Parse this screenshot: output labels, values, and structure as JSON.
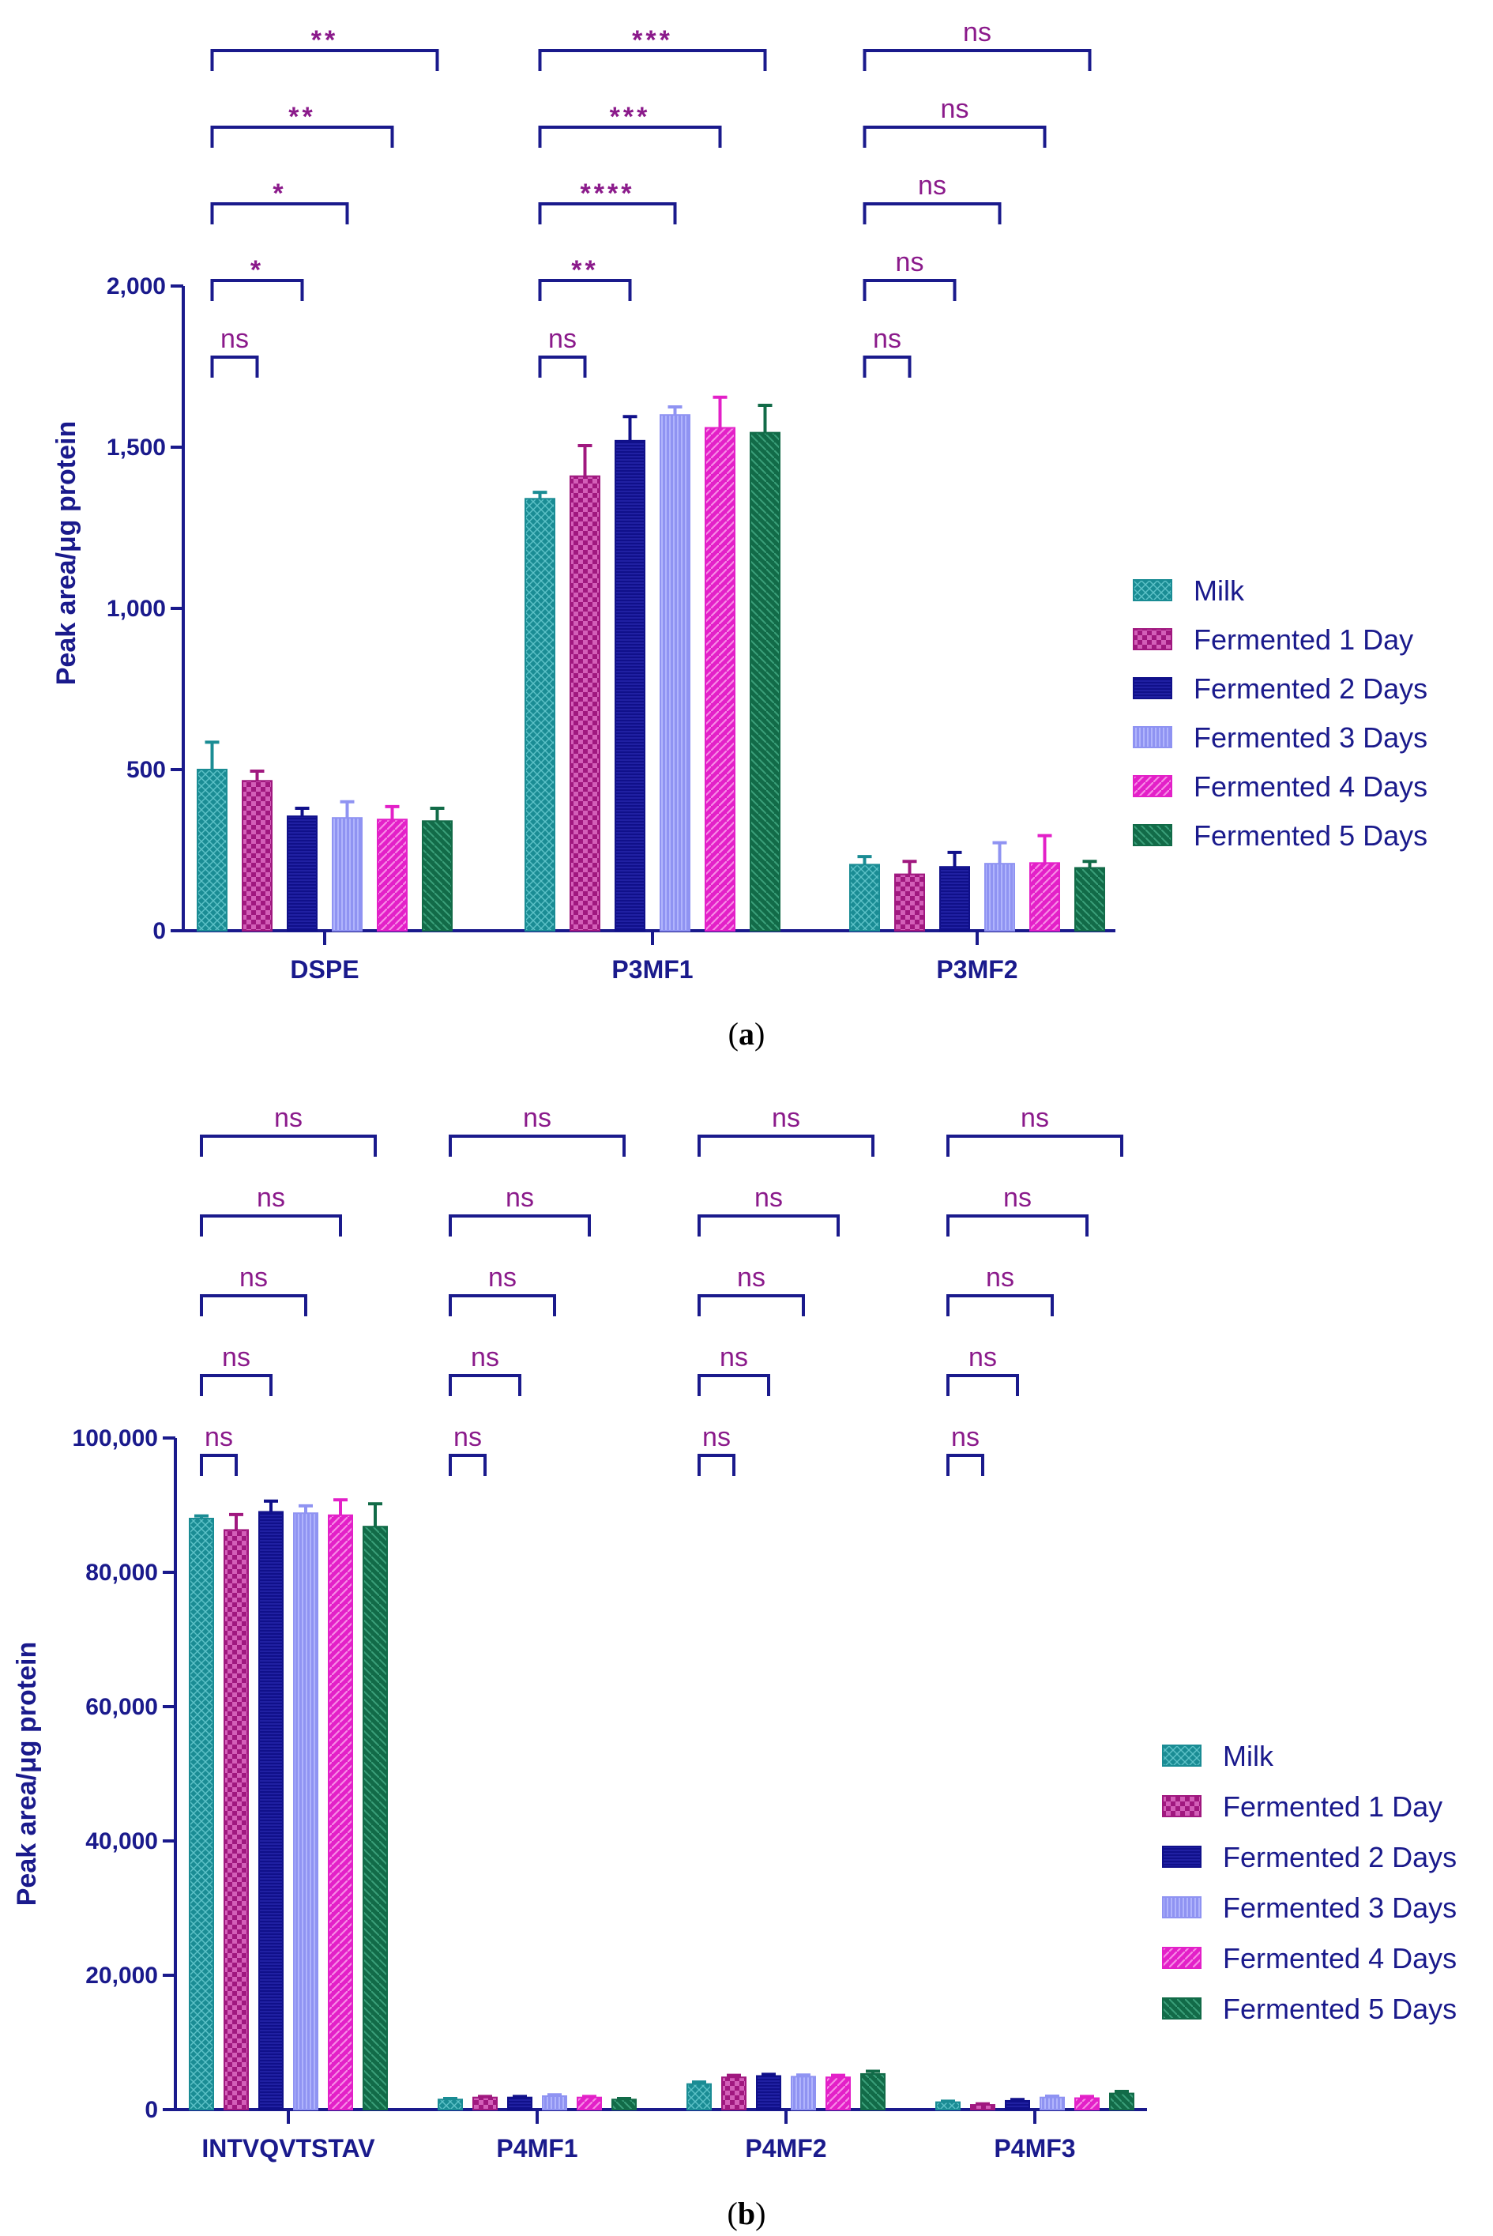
{
  "colors": {
    "axis": "#1a1a8c",
    "significance": "#8b1a8b",
    "series": [
      "#1a8c94",
      "#a0187f",
      "#10108a",
      "#8f93f2",
      "#e320c8",
      "#126b48"
    ]
  },
  "chart_data": [
    {
      "type": "bar",
      "panel_label_prefix": "(",
      "panel_label_letter": "a",
      "panel_label_suffix": ")",
      "ylabel": "Peak area/μg protein",
      "ylim": [
        0,
        2000
      ],
      "yticks": [
        {
          "value": 0,
          "label": "0"
        },
        {
          "value": 500,
          "label": "500"
        },
        {
          "value": 1000,
          "label": "1,000"
        },
        {
          "value": 1500,
          "label": "1,500"
        },
        {
          "value": 2000,
          "label": "2,000"
        }
      ],
      "categories": [
        "DSPE",
        "P3MF1",
        "P3MF2"
      ],
      "series": [
        {
          "name": "Milk",
          "values": [
            500,
            1340,
            205
          ],
          "errors": [
            85,
            20,
            25
          ]
        },
        {
          "name": "Fermented 1 Day",
          "values": [
            465,
            1410,
            175
          ],
          "errors": [
            30,
            95,
            40
          ]
        },
        {
          "name": "Fermented 2 Days",
          "values": [
            355,
            1520,
            198
          ],
          "errors": [
            25,
            75,
            45
          ]
        },
        {
          "name": "Fermented 3 Days",
          "values": [
            350,
            1600,
            208
          ],
          "errors": [
            50,
            25,
            65
          ]
        },
        {
          "name": "Fermented 4 Days",
          "values": [
            345,
            1560,
            210
          ],
          "errors": [
            40,
            95,
            85
          ]
        },
        {
          "name": "Fermented 5 Days",
          "values": [
            340,
            1545,
            195
          ],
          "errors": [
            40,
            85,
            20
          ]
        }
      ],
      "significance": [
        [
          "ns",
          "*",
          "*",
          "**",
          "**"
        ],
        [
          "ns",
          "**",
          "****",
          "***",
          "***"
        ],
        [
          "ns",
          "ns",
          "ns",
          "ns",
          "ns"
        ]
      ],
      "legend_position": "right"
    },
    {
      "type": "bar",
      "panel_label_prefix": "(",
      "panel_label_letter": "b",
      "panel_label_suffix": ")",
      "ylabel": "Peak area/μg protein",
      "ylim": [
        0,
        100000
      ],
      "yticks": [
        {
          "value": 0,
          "label": "0"
        },
        {
          "value": 20000,
          "label": "20,000"
        },
        {
          "value": 40000,
          "label": "40,000"
        },
        {
          "value": 60000,
          "label": "60,000"
        },
        {
          "value": 80000,
          "label": "80,000"
        },
        {
          "value": 100000,
          "label": "100,000"
        }
      ],
      "categories": [
        "INTVQVTSTAV",
        "P4MF1",
        "P4MF2",
        "P4MF3"
      ],
      "series": [
        {
          "name": "Milk",
          "values": [
            88000,
            1500,
            3800,
            1100
          ],
          "errors": [
            400,
            150,
            300,
            150
          ]
        },
        {
          "name": "Fermented 1 Day",
          "values": [
            86300,
            1800,
            4800,
            700
          ],
          "errors": [
            2300,
            150,
            300,
            150
          ]
        },
        {
          "name": "Fermented 2 Days",
          "values": [
            89000,
            1800,
            5000,
            1300
          ],
          "errors": [
            1600,
            150,
            250,
            200
          ]
        },
        {
          "name": "Fermented 3 Days",
          "values": [
            88800,
            2000,
            4900,
            1800
          ],
          "errors": [
            1100,
            200,
            250,
            200
          ]
        },
        {
          "name": "Fermented 4 Days",
          "values": [
            88500,
            1800,
            4800,
            1700
          ],
          "errors": [
            2300,
            150,
            300,
            250
          ]
        },
        {
          "name": "Fermented 5 Days",
          "values": [
            86800,
            1500,
            5300,
            2400
          ],
          "errors": [
            3400,
            150,
            400,
            300
          ]
        }
      ],
      "significance": [
        [
          "ns",
          "ns",
          "ns",
          "ns",
          "ns"
        ],
        [
          "ns",
          "ns",
          "ns",
          "ns",
          "ns"
        ],
        [
          "ns",
          "ns",
          "ns",
          "ns",
          "ns"
        ],
        [
          "ns",
          "ns",
          "ns",
          "ns",
          "ns"
        ]
      ],
      "legend_position": "right"
    }
  ]
}
